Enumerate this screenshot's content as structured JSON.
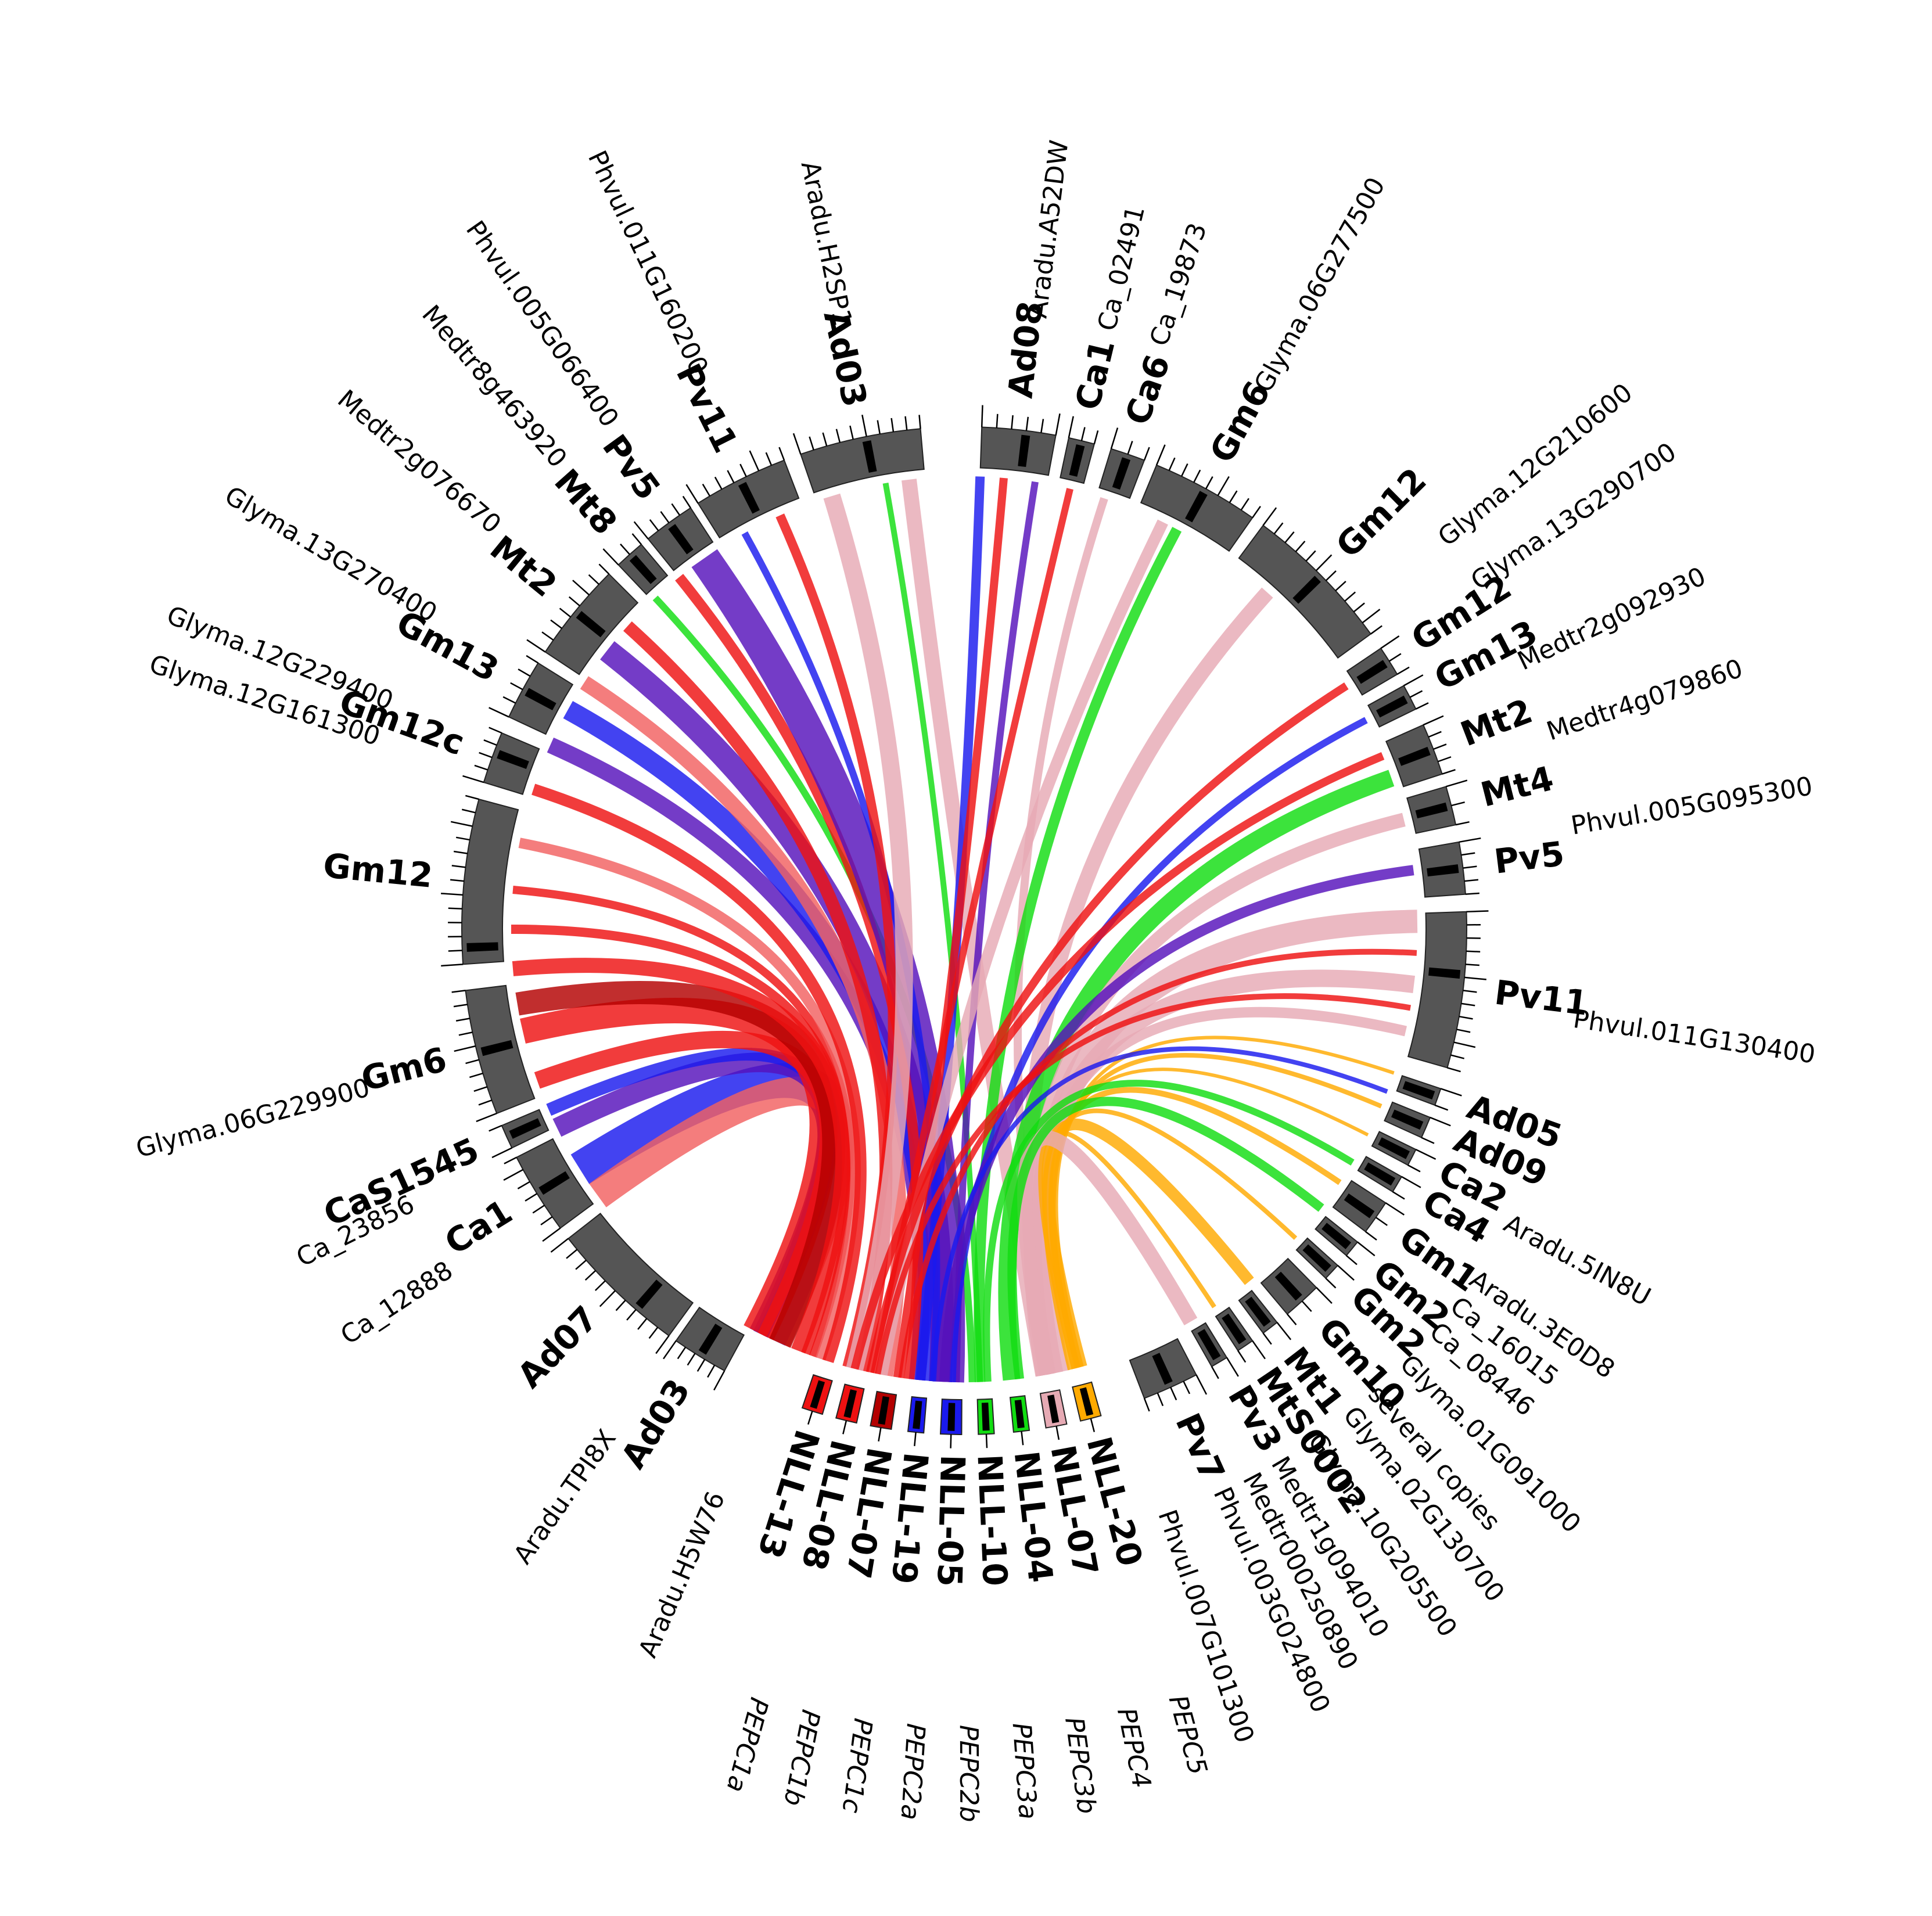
{
  "colors": {
    "background": "#ffffff",
    "segment": "#555555",
    "series": {
      "red": "#ee1111",
      "darkred": "#b30000",
      "blue": "#1a1aee",
      "purple": "#5511bb",
      "green": "#11dd11",
      "pink": "#e6aab4",
      "orange": "#ffaa00",
      "salmon": "#f26060"
    }
  },
  "chromosomes": [
    {
      "label": "Ad03",
      "a0": 208.5,
      "a1": 215.0,
      "ticks": 5,
      "mark": 0.5
    },
    {
      "label": "Ad07",
      "a0": 216.0,
      "a1": 232.0,
      "ticks": 10,
      "mark": 0.3
    },
    {
      "label": "Ca1",
      "a0": 233.5,
      "a1": 243.0,
      "ticks": 6,
      "mark": 0.5
    },
    {
      "label": "CaS1545",
      "a0": 244.2,
      "a1": 247.0,
      "ticks": 1,
      "mark": 0.5
    },
    {
      "label": "Gm6",
      "a0": 248.5,
      "a1": 263.0,
      "ticks": 9,
      "mark": 0.5
    },
    {
      "label": "Gm12",
      "a0": 266.0,
      "a1": 285.0,
      "ticks": 12,
      "mark": 0.1
    },
    {
      "label": "Gm12c",
      "a0": 287.0,
      "a1": 293.0,
      "ticks": 4,
      "mark": 0.6
    },
    {
      "label": "Gm13",
      "a0": 295.0,
      "a1": 302.0,
      "ticks": 4,
      "mark": 0.5
    },
    {
      "label": "Mt2",
      "a0": 303.5,
      "a1": 315.0,
      "ticks": 7,
      "mark": 0.5
    },
    {
      "label": "Mt8",
      "a0": 316.5,
      "a1": 320.0,
      "ticks": 2,
      "mark": 0.5
    },
    {
      "label": "Pv5",
      "a0": 321.0,
      "a1": 327.0,
      "ticks": 4,
      "mark": 0.5
    },
    {
      "label": "Pv11",
      "a0": 328.0,
      "a1": 339.0,
      "ticks": 7,
      "mark": 0.5
    },
    {
      "label": "Ad03",
      "a0": 341.0,
      "a1": 355.0,
      "ticks": 9,
      "mark": 0.55
    },
    {
      "label": "Ad08",
      "a0": 2.0,
      "a1": 10.5,
      "ticks": 5,
      "mark": 0.6
    },
    {
      "label": "Ca1",
      "a0": 12.0,
      "a1": 15.0,
      "ticks": 2,
      "mark": 0.5
    },
    {
      "label": "Ca6",
      "a0": 17.0,
      "a1": 21.0,
      "ticks": 2,
      "mark": 0.5
    },
    {
      "label": "Gm6",
      "a0": 22.5,
      "a1": 35.0,
      "ticks": 8,
      "mark": 0.5
    },
    {
      "label": "Gm12",
      "a0": 36.5,
      "a1": 54.0,
      "ticks": 11,
      "mark": 0.5
    },
    {
      "label": "Gm12",
      "a0": 56.0,
      "a1": 59.5,
      "ticks": 2,
      "mark": 0.5
    },
    {
      "label": "Gm13",
      "a0": 61.0,
      "a1": 64.0,
      "ticks": 2,
      "mark": 0.5
    },
    {
      "label": "Mt2",
      "a0": 66.0,
      "a1": 72.0,
      "ticks": 4,
      "mark": 0.5
    },
    {
      "label": "Mt4",
      "a0": 73.5,
      "a1": 78.0,
      "ticks": 2,
      "mark": 0.5
    },
    {
      "label": "Pv5",
      "a0": 80.0,
      "a1": 86.0,
      "ticks": 4,
      "mark": 0.5
    },
    {
      "label": "Pv11",
      "a0": 88.0,
      "a1": 106.0,
      "ticks": 12,
      "mark": 0.4
    },
    {
      "label": "Ad05",
      "a0": 108.5,
      "a1": 110.5,
      "ticks": 1,
      "mark": 0.5
    },
    {
      "label": "Ad09",
      "a0": 112.0,
      "a1": 114.5,
      "ticks": 1,
      "mark": 0.5
    },
    {
      "label": "Ca2",
      "a0": 116.0,
      "a1": 118.0,
      "ticks": 1,
      "mark": 0.5
    },
    {
      "label": "Ca4",
      "a0": 119.5,
      "a1": 121.5,
      "ticks": 1,
      "mark": 0.5
    },
    {
      "label": "Gm1",
      "a0": 123.0,
      "a1": 127.0,
      "ticks": 2,
      "mark": 0.5
    },
    {
      "label": "Gm2",
      "a0": 128.5,
      "a1": 130.5,
      "ticks": 1,
      "mark": 0.5
    },
    {
      "label": "Gm2",
      "a0": 132.0,
      "a1": 134.0,
      "ticks": 1,
      "mark": 0.5
    },
    {
      "label": "Gm10",
      "a0": 135.5,
      "a1": 140.0,
      "ticks": 2,
      "mark": 0.5
    },
    {
      "label": "Mt1",
      "a0": 141.5,
      "a1": 143.5,
      "ticks": 1,
      "mark": 0.5
    },
    {
      "label": "MtS0002",
      "a0": 145.0,
      "a1": 147.0,
      "ticks": 1,
      "mark": 0.5
    },
    {
      "label": "Pv3",
      "a0": 148.5,
      "a1": 150.5,
      "ticks": 1,
      "mark": 0.5
    },
    {
      "label": "Pv7",
      "a0": 152.5,
      "a1": 159.0,
      "ticks": 4,
      "mark": 0.5
    }
  ],
  "nll_segments": [
    {
      "label": "NLL-13",
      "color": "red",
      "a0": 196.3,
      "a1": 198.7
    },
    {
      "label": "NLL-08",
      "color": "red",
      "a0": 192.3,
      "a1": 194.7
    },
    {
      "label": "NLL-07",
      "color": "darkred",
      "a0": 188.3,
      "a1": 190.7
    },
    {
      "label": "NLL-19",
      "color": "blue",
      "a0": 184.6,
      "a1": 186.4
    },
    {
      "label": "NLL-05",
      "color": "blue",
      "a0": 180.3,
      "a1": 182.7
    },
    {
      "label": "NLL-10",
      "color": "green",
      "a0": 176.6,
      "a1": 178.4
    },
    {
      "label": "NLL-04",
      "color": "green",
      "a0": 172.6,
      "a1": 174.4
    },
    {
      "label": "NLL-07",
      "color": "pink",
      "a0": 168.3,
      "a1": 170.7
    },
    {
      "label": "NLL-20",
      "color": "orange",
      "a0": 164.3,
      "a1": 166.7
    }
  ],
  "gene_labels": [
    {
      "text": "Aradu.TPI8X",
      "angle": 215.0
    },
    {
      "text": "Aradu.H5W76",
      "angle": 203.5
    },
    {
      "text": "Ca_12888",
      "angle": 236.5
    },
    {
      "text": "Ca_23856",
      "angle": 243.5
    },
    {
      "text": "Glyma.06G229900",
      "angle": 255.0
    },
    {
      "text": "Glyma.12G161300",
      "angle": 288.0
    },
    {
      "text": "Glyma.12G229400",
      "angle": 291.5
    },
    {
      "text": "Glyma.13G270400",
      "angle": 300.5
    },
    {
      "text": "Medtr2g076670",
      "angle": 310.5
    },
    {
      "text": "Medtr8g463920",
      "angle": 319.0
    },
    {
      "text": "Phvul.005G066400",
      "angle": 325.0
    },
    {
      "text": "Phvul.011G160200",
      "angle": 334.5
    },
    {
      "text": "Aradu.H2SP1",
      "angle": 348.5
    },
    {
      "text": "Aradu.A52DW",
      "angle": 7.0
    },
    {
      "text": "Ca_02491",
      "angle": 13.5
    },
    {
      "text": "Ca_19873",
      "angle": 18.5
    },
    {
      "text": "Glyma.06G277500",
      "angle": 29.0
    },
    {
      "text": "Glyma.12G210600",
      "angle": 51.0
    },
    {
      "text": "Glyma.13G290700",
      "angle": 56.0
    },
    {
      "text": "Medtr2g092930",
      "angle": 64.5
    },
    {
      "text": "Medtr4g079860",
      "angle": 71.5
    },
    {
      "text": "Phvul.005G095300",
      "angle": 80.5
    },
    {
      "text": "Phvul.011G130400",
      "angle": 98.5
    },
    {
      "text": "Aradu.5IN8U",
      "angle": 118.5
    },
    {
      "text": "Aradu.3E0D8",
      "angle": 124.5
    },
    {
      "text": "Ca_16015",
      "angle": 127.5
    },
    {
      "text": "Ca_08446",
      "angle": 130.5
    },
    {
      "text": "Glyma.01G091000",
      "angle": 134.5
    },
    {
      "text": "several copies",
      "angle": 138.5
    },
    {
      "text": "Glyma.02G130700",
      "angle": 141.5
    },
    {
      "text": "Glyma.10G205500",
      "angle": 145.5
    },
    {
      "text": "Medtr1g094010",
      "angle": 149.5
    },
    {
      "text": "Medtr0002s0890",
      "angle": 152.5
    },
    {
      "text": "Phvul.003G024800",
      "angle": 155.5
    },
    {
      "text": "Phvul.007G101300",
      "angle": 161.0
    }
  ],
  "pepc_labels": [
    {
      "text": "PEPC1a",
      "angle": 195.0
    },
    {
      "text": "PEPC1b",
      "angle": 191.2
    },
    {
      "text": "PEPC1c",
      "angle": 187.4
    },
    {
      "text": "PEPC2a",
      "angle": 183.6
    },
    {
      "text": "PEPC2b",
      "angle": 179.8
    },
    {
      "text": "PEPC3a",
      "angle": 176.0
    },
    {
      "text": "PEPC3b",
      "angle": 172.2
    },
    {
      "text": "PEPC4",
      "angle": 168.4
    },
    {
      "text": "PEPC5",
      "angle": 164.6
    }
  ],
  "links": [
    {
      "from": 205.5,
      "to": 238.0,
      "color": "blue",
      "width": 60
    },
    {
      "from": 204.5,
      "to": 234.0,
      "color": "salmon",
      "width": 50
    },
    {
      "from": 207.0,
      "to": 244.0,
      "color": "purple",
      "width": 34
    },
    {
      "from": 206.5,
      "to": 246.5,
      "color": "blue",
      "width": 22
    },
    {
      "from": 206.0,
      "to": 250.5,
      "color": "red",
      "width": 30
    },
    {
      "from": 207.5,
      "to": 257.0,
      "color": "red",
      "width": 44
    },
    {
      "from": 204.0,
      "to": 260.5,
      "color": "darkred",
      "width": 40
    },
    {
      "from": 201.5,
      "to": 265.0,
      "color": "red",
      "width": 26
    },
    {
      "from": 200.5,
      "to": 270.0,
      "color": "red",
      "width": 16
    },
    {
      "from": 199.5,
      "to": 275.0,
      "color": "red",
      "width": 14
    },
    {
      "from": 198.5,
      "to": 281.0,
      "color": "salmon",
      "width": 18
    },
    {
      "from": 197.5,
      "to": 288.0,
      "color": "red",
      "width": 20
    },
    {
      "from": 186.0,
      "to": 294.0,
      "color": "purple",
      "width": 28
    },
    {
      "from": 185.0,
      "to": 299.0,
      "color": "blue",
      "width": 34
    },
    {
      "from": 190.0,
      "to": 303.0,
      "color": "salmon",
      "width": 26
    },
    {
      "from": 183.0,
      "to": 308.0,
      "color": "purple",
      "width": 40
    },
    {
      "from": 193.0,
      "to": 312.0,
      "color": "red",
      "width": 22
    },
    {
      "from": 179.0,
      "to": 317.0,
      "color": "green",
      "width": 12
    },
    {
      "from": 187.0,
      "to": 321.0,
      "color": "red",
      "width": 18
    },
    {
      "from": 182.0,
      "to": 325.0,
      "color": "purple",
      "width": 54
    },
    {
      "from": 184.0,
      "to": 331.0,
      "color": "blue",
      "width": 12
    },
    {
      "from": 195.0,
      "to": 336.0,
      "color": "red",
      "width": 16
    },
    {
      "from": 194.0,
      "to": 343.0,
      "color": "pink",
      "width": 30
    },
    {
      "from": 178.0,
      "to": 350.0,
      "color": "green",
      "width": 10
    },
    {
      "from": 170.0,
      "to": 353.0,
      "color": "pink",
      "width": 26
    },
    {
      "from": 185.5,
      "to": 2.0,
      "color": "blue",
      "width": 16
    },
    {
      "from": 188.5,
      "to": 5.0,
      "color": "red",
      "width": 14
    },
    {
      "from": 181.0,
      "to": 9.0,
      "color": "purple",
      "width": 12
    },
    {
      "from": 191.5,
      "to": 13.5,
      "color": "red",
      "width": 12
    },
    {
      "from": 169.0,
      "to": 18.0,
      "color": "pink",
      "width": 14
    },
    {
      "from": 178.0,
      "to": 28.0,
      "color": "green",
      "width": 18
    },
    {
      "from": 190.5,
      "to": 26.0,
      "color": "pink",
      "width": 20
    },
    {
      "from": 169.5,
      "to": 42.0,
      "color": "pink",
      "width": 26
    },
    {
      "from": 192.0,
      "to": 57.5,
      "color": "red",
      "width": 14
    },
    {
      "from": 181.5,
      "to": 62.5,
      "color": "blue",
      "width": 12
    },
    {
      "from": 194.0,
      "to": 67.5,
      "color": "red",
      "width": 14
    },
    {
      "from": 174.0,
      "to": 70.5,
      "color": "green",
      "width": 30
    },
    {
      "from": 170.0,
      "to": 76.0,
      "color": "pink",
      "width": 24
    },
    {
      "from": 182.5,
      "to": 82.5,
      "color": "purple",
      "width": 18
    },
    {
      "from": 168.0,
      "to": 89.0,
      "color": "pink",
      "width": 40
    },
    {
      "from": 188.0,
      "to": 93.0,
      "color": "red",
      "width": 10
    },
    {
      "from": 168.5,
      "to": 97.0,
      "color": "pink",
      "width": 30
    },
    {
      "from": 169.0,
      "to": 103.0,
      "color": "pink",
      "width": 18
    },
    {
      "from": 165.5,
      "to": 108.5,
      "color": "orange",
      "width": 6
    },
    {
      "from": 165.0,
      "to": 113.0,
      "color": "orange",
      "width": 8
    },
    {
      "from": 166.0,
      "to": 117.0,
      "color": "orange",
      "width": 6
    },
    {
      "from": 165.5,
      "to": 124.0,
      "color": "orange",
      "width": 10
    },
    {
      "from": 166.5,
      "to": 133.0,
      "color": "orange",
      "width": 8
    },
    {
      "from": 165.0,
      "to": 141.0,
      "color": "orange",
      "width": 20
    },
    {
      "from": 166.0,
      "to": 146.5,
      "color": "orange",
      "width": 8
    },
    {
      "from": 169.5,
      "to": 150.0,
      "color": "pink",
      "width": 26
    },
    {
      "from": 173.0,
      "to": 128.0,
      "color": "green",
      "width": 16
    },
    {
      "from": 177.0,
      "to": 121.0,
      "color": "green",
      "width": 12
    },
    {
      "from": 184.0,
      "to": 111.0,
      "color": "blue",
      "width": 8
    },
    {
      "from": 191.0,
      "to": 100.0,
      "color": "red",
      "width": 10
    }
  ]
}
